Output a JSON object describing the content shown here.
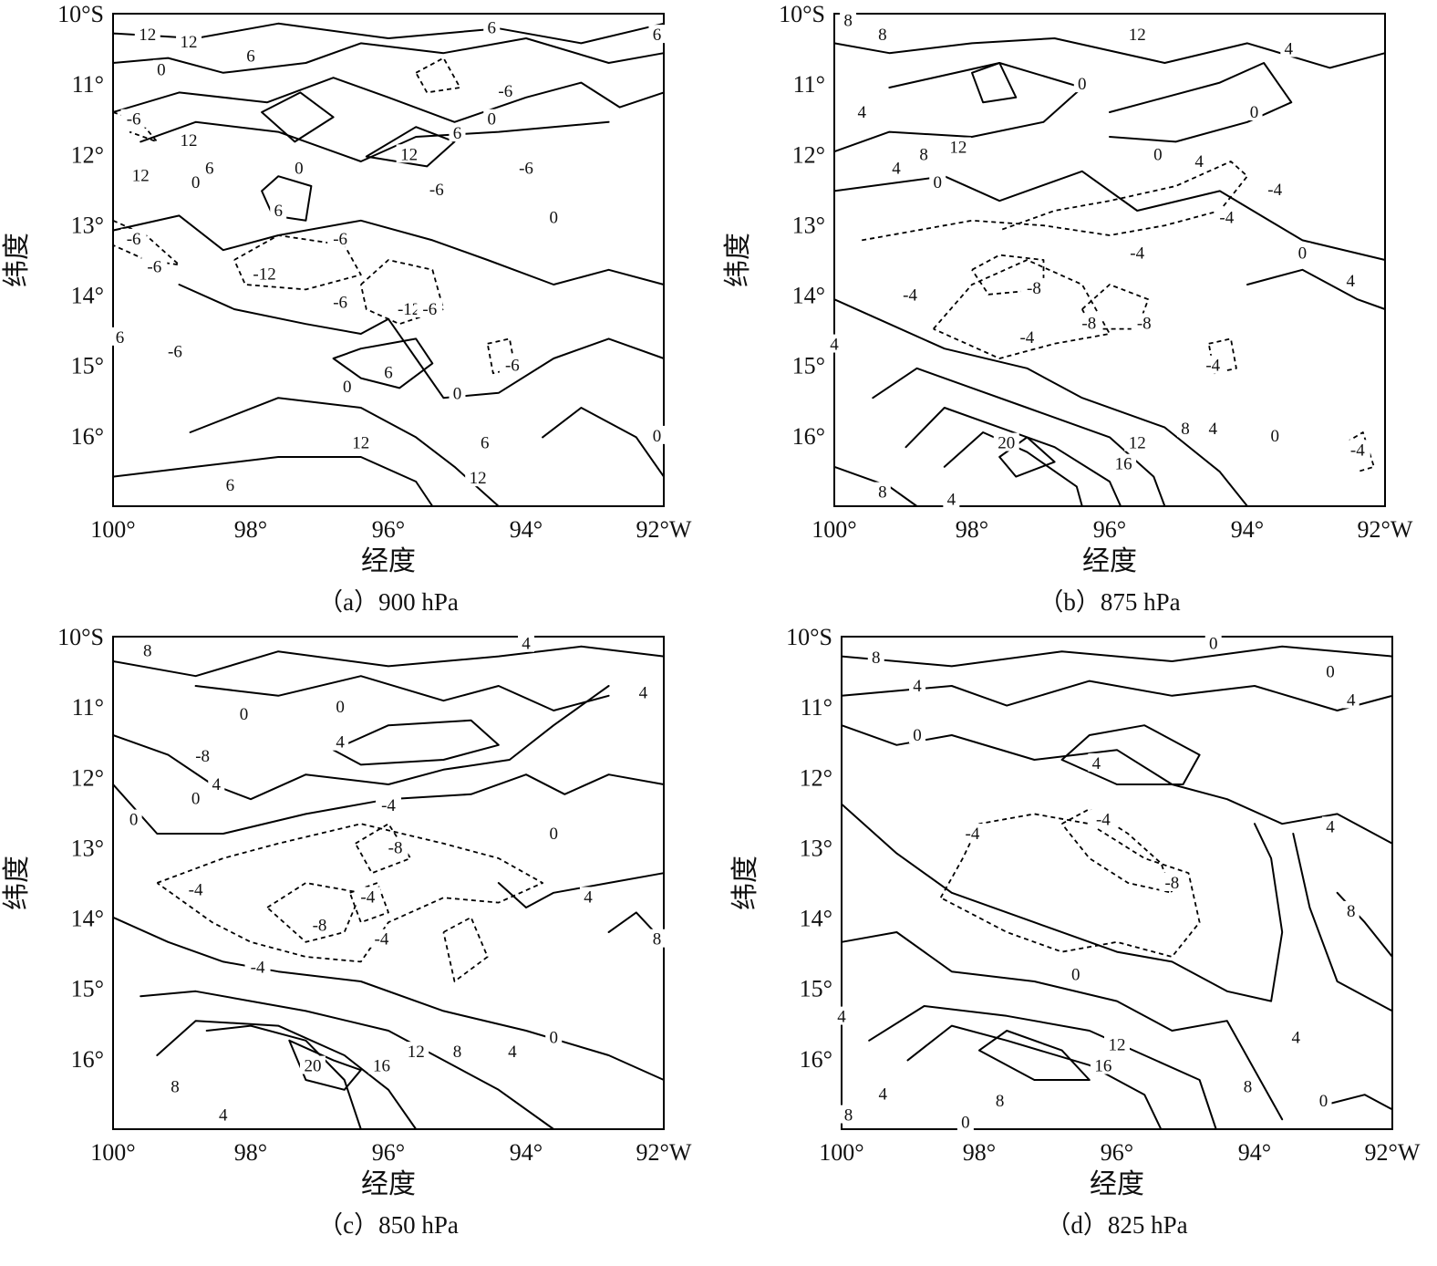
{
  "chart_data": [
    {
      "type": "contour",
      "caption": "（a）900 hPa",
      "xlabel": "经度",
      "ylabel": "纬度",
      "xlim": [
        100,
        92
      ],
      "ylim": [
        17,
        10
      ],
      "x_ticks": [
        "100°",
        "98°",
        "96°",
        "94°",
        "92°W"
      ],
      "y_ticks": [
        "10°S",
        "11°",
        "12°",
        "13°",
        "14°",
        "15°",
        "16°"
      ],
      "contour_interval": 6,
      "negative_dashed": true,
      "contour_labels": [
        {
          "value": "12",
          "lon": 99.5,
          "lat": 10.3
        },
        {
          "value": "12",
          "lon": 98.9,
          "lat": 10.4
        },
        {
          "value": "6",
          "lon": 98.0,
          "lat": 10.6
        },
        {
          "value": "6",
          "lon": 94.5,
          "lat": 10.2
        },
        {
          "value": "6",
          "lon": 92.1,
          "lat": 10.3
        },
        {
          "value": "0",
          "lon": 99.3,
          "lat": 10.8
        },
        {
          "value": "-6",
          "lon": 94.3,
          "lat": 11.1
        },
        {
          "value": "0",
          "lon": 94.5,
          "lat": 11.5
        },
        {
          "value": "6",
          "lon": 95.0,
          "lat": 11.7
        },
        {
          "value": "-6",
          "lon": 99.7,
          "lat": 11.5
        },
        {
          "value": "12",
          "lon": 98.9,
          "lat": 11.8
        },
        {
          "value": "12",
          "lon": 99.6,
          "lat": 12.3
        },
        {
          "value": "6",
          "lon": 98.6,
          "lat": 12.2
        },
        {
          "value": "0",
          "lon": 98.8,
          "lat": 12.4
        },
        {
          "value": "0",
          "lon": 97.3,
          "lat": 12.2
        },
        {
          "value": "12",
          "lon": 95.7,
          "lat": 12.0
        },
        {
          "value": "-6",
          "lon": 94.0,
          "lat": 12.2
        },
        {
          "value": "-6",
          "lon": 95.3,
          "lat": 12.5
        },
        {
          "value": "6",
          "lon": 97.6,
          "lat": 12.8
        },
        {
          "value": "0",
          "lon": 93.6,
          "lat": 12.9
        },
        {
          "value": "-6",
          "lon": 99.7,
          "lat": 13.2
        },
        {
          "value": "-6",
          "lon": 99.4,
          "lat": 13.6
        },
        {
          "value": "-6",
          "lon": 96.7,
          "lat": 13.2
        },
        {
          "value": "-12",
          "lon": 97.8,
          "lat": 13.7
        },
        {
          "value": "-6",
          "lon": 96.7,
          "lat": 14.1
        },
        {
          "value": "-12",
          "lon": 95.7,
          "lat": 14.2
        },
        {
          "value": "-6",
          "lon": 95.4,
          "lat": 14.2
        },
        {
          "value": "6",
          "lon": 99.9,
          "lat": 14.6
        },
        {
          "value": "-6",
          "lon": 99.1,
          "lat": 14.8
        },
        {
          "value": "6",
          "lon": 96.0,
          "lat": 15.1
        },
        {
          "value": "0",
          "lon": 96.6,
          "lat": 15.3
        },
        {
          "value": "-6",
          "lon": 94.2,
          "lat": 15.0
        },
        {
          "value": "0",
          "lon": 95.0,
          "lat": 15.4
        },
        {
          "value": "12",
          "lon": 96.4,
          "lat": 16.1
        },
        {
          "value": "6",
          "lon": 94.6,
          "lat": 16.1
        },
        {
          "value": "0",
          "lon": 92.1,
          "lat": 16.0
        },
        {
          "value": "12",
          "lon": 94.7,
          "lat": 16.6
        },
        {
          "value": "6",
          "lon": 98.3,
          "lat": 16.7
        }
      ]
    },
    {
      "type": "contour",
      "caption": "（b）875 hPa",
      "xlabel": "经度",
      "ylabel": "纬度",
      "xlim": [
        100,
        92
      ],
      "ylim": [
        17,
        10
      ],
      "x_ticks": [
        "100°",
        "98°",
        "96°",
        "94°",
        "92°W"
      ],
      "y_ticks": [
        "10°S",
        "11°",
        "12°",
        "13°",
        "14°",
        "15°",
        "16°"
      ],
      "contour_interval": 4,
      "negative_dashed": true,
      "contour_labels": [
        {
          "value": "8",
          "lon": 99.8,
          "lat": 10.1
        },
        {
          "value": "8",
          "lon": 99.3,
          "lat": 10.3
        },
        {
          "value": "12",
          "lon": 95.6,
          "lat": 10.3
        },
        {
          "value": "4",
          "lon": 93.4,
          "lat": 10.5
        },
        {
          "value": "0",
          "lon": 96.4,
          "lat": 11.0
        },
        {
          "value": "0",
          "lon": 93.9,
          "lat": 11.4
        },
        {
          "value": "4",
          "lon": 99.6,
          "lat": 11.4
        },
        {
          "value": "12",
          "lon": 98.2,
          "lat": 11.9
        },
        {
          "value": "8",
          "lon": 98.7,
          "lat": 12.0
        },
        {
          "value": "4",
          "lon": 99.1,
          "lat": 12.2
        },
        {
          "value": "0",
          "lon": 95.3,
          "lat": 12.0
        },
        {
          "value": "4",
          "lon": 94.7,
          "lat": 12.1
        },
        {
          "value": "0",
          "lon": 98.5,
          "lat": 12.4
        },
        {
          "value": "-4",
          "lon": 93.6,
          "lat": 12.5
        },
        {
          "value": "-4",
          "lon": 94.3,
          "lat": 12.9
        },
        {
          "value": "-4",
          "lon": 95.6,
          "lat": 13.4
        },
        {
          "value": "0",
          "lon": 93.2,
          "lat": 13.4
        },
        {
          "value": "4",
          "lon": 92.5,
          "lat": 13.8
        },
        {
          "value": "-8",
          "lon": 97.1,
          "lat": 13.9
        },
        {
          "value": "-4",
          "lon": 98.9,
          "lat": 14.0
        },
        {
          "value": "-8",
          "lon": 95.5,
          "lat": 14.4
        },
        {
          "value": "-8",
          "lon": 96.3,
          "lat": 14.4
        },
        {
          "value": "-4",
          "lon": 97.2,
          "lat": 14.6
        },
        {
          "value": "-4",
          "lon": 94.5,
          "lat": 15.0
        },
        {
          "value": "4",
          "lon": 100.0,
          "lat": 14.7
        },
        {
          "value": "20",
          "lon": 97.5,
          "lat": 16.1
        },
        {
          "value": "12",
          "lon": 95.6,
          "lat": 16.1
        },
        {
          "value": "8",
          "lon": 94.9,
          "lat": 15.9
        },
        {
          "value": "4",
          "lon": 94.5,
          "lat": 15.9
        },
        {
          "value": "0",
          "lon": 93.6,
          "lat": 16.0
        },
        {
          "value": "16",
          "lon": 95.8,
          "lat": 16.4
        },
        {
          "value": "-4",
          "lon": 92.4,
          "lat": 16.2
        },
        {
          "value": "8",
          "lon": 99.3,
          "lat": 16.8
        },
        {
          "value": "4",
          "lon": 98.3,
          "lat": 16.9
        }
      ]
    },
    {
      "type": "contour",
      "caption": "（c）850 hPa",
      "xlabel": "经度",
      "ylabel": "纬度",
      "xlim": [
        100,
        92
      ],
      "ylim": [
        17,
        10
      ],
      "x_ticks": [
        "100°",
        "98°",
        "96°",
        "94°",
        "92°W"
      ],
      "y_ticks": [
        "10°S",
        "11°",
        "12°",
        "13°",
        "14°",
        "15°",
        "16°"
      ],
      "contour_interval": 4,
      "negative_dashed": true,
      "contour_labels": [
        {
          "value": "8",
          "lon": 99.5,
          "lat": 10.2
        },
        {
          "value": "4",
          "lon": 94.0,
          "lat": 10.1
        },
        {
          "value": "4",
          "lon": 92.3,
          "lat": 10.8
        },
        {
          "value": "0",
          "lon": 98.1,
          "lat": 11.1
        },
        {
          "value": "0",
          "lon": 96.7,
          "lat": 11.0
        },
        {
          "value": "4",
          "lon": 96.7,
          "lat": 11.5
        },
        {
          "value": "-8",
          "lon": 98.7,
          "lat": 11.7
        },
        {
          "value": "4",
          "lon": 98.5,
          "lat": 12.1
        },
        {
          "value": "0",
          "lon": 98.8,
          "lat": 12.3
        },
        {
          "value": "0",
          "lon": 99.7,
          "lat": 12.6
        },
        {
          "value": "-4",
          "lon": 96.0,
          "lat": 12.4
        },
        {
          "value": "0",
          "lon": 93.6,
          "lat": 12.8
        },
        {
          "value": "-8",
          "lon": 95.9,
          "lat": 13.0
        },
        {
          "value": "-4",
          "lon": 98.8,
          "lat": 13.6
        },
        {
          "value": "-4",
          "lon": 96.3,
          "lat": 13.7
        },
        {
          "value": "4",
          "lon": 93.1,
          "lat": 13.7
        },
        {
          "value": "-8",
          "lon": 97.0,
          "lat": 14.1
        },
        {
          "value": "-4",
          "lon": 96.1,
          "lat": 14.3
        },
        {
          "value": "-4",
          "lon": 97.9,
          "lat": 14.7
        },
        {
          "value": "8",
          "lon": 92.1,
          "lat": 14.3
        },
        {
          "value": "0",
          "lon": 93.6,
          "lat": 15.7
        },
        {
          "value": "4",
          "lon": 94.2,
          "lat": 15.9
        },
        {
          "value": "8",
          "lon": 95.0,
          "lat": 15.9
        },
        {
          "value": "12",
          "lon": 95.6,
          "lat": 15.9
        },
        {
          "value": "16",
          "lon": 96.1,
          "lat": 16.1
        },
        {
          "value": "20",
          "lon": 97.1,
          "lat": 16.1
        },
        {
          "value": "8",
          "lon": 99.1,
          "lat": 16.4
        },
        {
          "value": "4",
          "lon": 98.4,
          "lat": 16.8
        }
      ]
    },
    {
      "type": "contour",
      "caption": "（d）825 hPa",
      "xlabel": "经度",
      "ylabel": "纬度",
      "xlim": [
        100,
        92
      ],
      "ylim": [
        17,
        10
      ],
      "x_ticks": [
        "100°",
        "98°",
        "96°",
        "94°",
        "92°W"
      ],
      "y_ticks": [
        "10°S",
        "11°",
        "12°",
        "13°",
        "14°",
        "15°",
        "16°"
      ],
      "contour_interval": 4,
      "negative_dashed": true,
      "contour_labels": [
        {
          "value": "8",
          "lon": 99.5,
          "lat": 10.3
        },
        {
          "value": "0",
          "lon": 94.6,
          "lat": 10.1
        },
        {
          "value": "0",
          "lon": 92.9,
          "lat": 10.5
        },
        {
          "value": "4",
          "lon": 98.9,
          "lat": 10.7
        },
        {
          "value": "4",
          "lon": 92.6,
          "lat": 10.9
        },
        {
          "value": "0",
          "lon": 98.9,
          "lat": 11.4
        },
        {
          "value": "4",
          "lon": 96.3,
          "lat": 11.8
        },
        {
          "value": "-4",
          "lon": 96.2,
          "lat": 12.6
        },
        {
          "value": "-4",
          "lon": 98.1,
          "lat": 12.8
        },
        {
          "value": "4",
          "lon": 92.9,
          "lat": 12.7
        },
        {
          "value": "-8",
          "lon": 95.2,
          "lat": 13.5
        },
        {
          "value": "8",
          "lon": 92.6,
          "lat": 13.9
        },
        {
          "value": "0",
          "lon": 96.6,
          "lat": 14.8
        },
        {
          "value": "4",
          "lon": 93.4,
          "lat": 15.7
        },
        {
          "value": "4",
          "lon": 100.0,
          "lat": 15.4
        },
        {
          "value": "12",
          "lon": 96.0,
          "lat": 15.8
        },
        {
          "value": "16",
          "lon": 96.2,
          "lat": 16.1
        },
        {
          "value": "8",
          "lon": 94.1,
          "lat": 16.4
        },
        {
          "value": "4",
          "lon": 99.4,
          "lat": 16.5
        },
        {
          "value": "8",
          "lon": 97.7,
          "lat": 16.6
        },
        {
          "value": "0",
          "lon": 93.0,
          "lat": 16.6
        },
        {
          "value": "8",
          "lon": 99.9,
          "lat": 16.8
        },
        {
          "value": "0",
          "lon": 98.2,
          "lat": 16.9
        }
      ]
    }
  ]
}
